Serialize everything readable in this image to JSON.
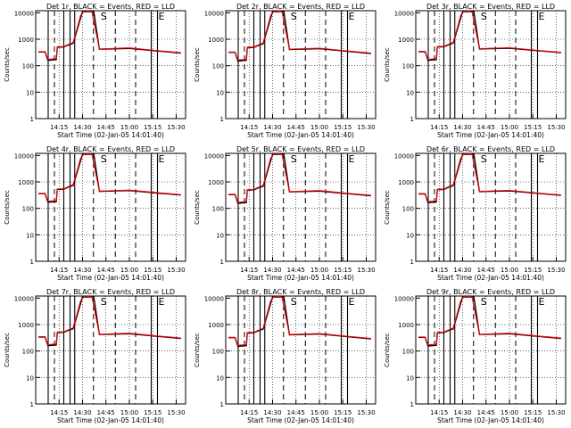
{
  "chart_data": {
    "type": "line",
    "layout": "3x3 grid",
    "x_ticks": [
      "14:15",
      "14:30",
      "14:45",
      "15:00",
      "15:15",
      "15:30"
    ],
    "xlabel": "Start Time (02-Jan-05 14:01:40)",
    "ylabel": "Counts/sec",
    "yscale": "log",
    "ylim": [
      1,
      12000
    ],
    "y_ticks": [
      "1",
      "10",
      "100",
      "1000",
      "10000"
    ],
    "grid": "dotted",
    "series_colors": {
      "events": "#000000",
      "lld": "#ff0000"
    },
    "markers": {
      "solid_times": [
        "14:08",
        "14:18",
        "14:22",
        "14:25",
        "15:14",
        "15:18"
      ],
      "dashed_times": [
        "14:12",
        "14:37",
        "14:51",
        "15:04"
      ],
      "letters": [
        {
          "text": "S",
          "time": "14:41"
        },
        {
          "text": "E",
          "time": "15:18"
        }
      ]
    },
    "panels": [
      {
        "title": "Det 1r, BLACK = Events, RED = LLD",
        "events": [
          [
            14.03,
            330
          ],
          [
            14.1,
            330
          ],
          [
            14.13,
            160
          ],
          [
            14.22,
            170
          ],
          [
            14.23,
            500
          ],
          [
            14.3,
            510
          ],
          [
            14.35,
            610
          ],
          [
            14.4,
            700
          ],
          [
            14.5,
            11000
          ],
          [
            14.62,
            11000
          ],
          [
            14.68,
            420
          ],
          [
            15.0,
            450
          ],
          [
            15.3,
            360
          ],
          [
            15.55,
            300
          ]
        ],
        "lld": [
          [
            14.03,
            340
          ],
          [
            14.1,
            340
          ],
          [
            14.13,
            175
          ],
          [
            14.22,
            185
          ],
          [
            14.23,
            520
          ],
          [
            14.3,
            530
          ],
          [
            14.35,
            640
          ],
          [
            14.4,
            750
          ],
          [
            14.48,
            8000
          ],
          [
            14.52,
            12000
          ],
          [
            14.6,
            11000
          ],
          [
            14.68,
            430
          ],
          [
            15.0,
            470
          ],
          [
            15.3,
            370
          ],
          [
            15.55,
            310
          ]
        ]
      },
      {
        "title": "Det 2r, BLACK = Events, RED = LLD",
        "events": [
          [
            14.03,
            320
          ],
          [
            14.1,
            320
          ],
          [
            14.13,
            150
          ],
          [
            14.22,
            160
          ],
          [
            14.23,
            480
          ],
          [
            14.3,
            490
          ],
          [
            14.35,
            590
          ],
          [
            14.4,
            680
          ],
          [
            14.5,
            11000
          ],
          [
            14.62,
            11000
          ],
          [
            14.68,
            410
          ],
          [
            15.0,
            440
          ],
          [
            15.3,
            350
          ],
          [
            15.55,
            290
          ]
        ],
        "lld": [
          [
            14.03,
            330
          ],
          [
            14.1,
            330
          ],
          [
            14.13,
            165
          ],
          [
            14.22,
            175
          ],
          [
            14.23,
            500
          ],
          [
            14.3,
            510
          ],
          [
            14.35,
            620
          ],
          [
            14.4,
            730
          ],
          [
            14.48,
            8000
          ],
          [
            14.52,
            12000
          ],
          [
            14.6,
            11000
          ],
          [
            14.68,
            420
          ],
          [
            15.0,
            460
          ],
          [
            15.3,
            360
          ],
          [
            15.55,
            300
          ]
        ]
      },
      {
        "title": "Det 3r, BLACK = Events, RED = LLD",
        "events": [
          [
            14.03,
            340
          ],
          [
            14.1,
            340
          ],
          [
            14.13,
            160
          ],
          [
            14.22,
            170
          ],
          [
            14.23,
            510
          ],
          [
            14.3,
            520
          ],
          [
            14.35,
            620
          ],
          [
            14.4,
            720
          ],
          [
            14.5,
            11000
          ],
          [
            14.62,
            11000
          ],
          [
            14.68,
            430
          ],
          [
            15.0,
            460
          ],
          [
            15.3,
            370
          ],
          [
            15.55,
            310
          ]
        ],
        "lld": [
          [
            14.03,
            350
          ],
          [
            14.1,
            350
          ],
          [
            14.13,
            175
          ],
          [
            14.22,
            185
          ],
          [
            14.23,
            530
          ],
          [
            14.3,
            540
          ],
          [
            14.35,
            650
          ],
          [
            14.4,
            770
          ],
          [
            14.48,
            8000
          ],
          [
            14.52,
            12000
          ],
          [
            14.6,
            11000
          ],
          [
            14.68,
            440
          ],
          [
            15.0,
            480
          ],
          [
            15.3,
            380
          ],
          [
            15.55,
            320
          ]
        ]
      },
      {
        "title": "Det 4r, BLACK = Events, RED = LLD",
        "events": [
          [
            14.03,
            360
          ],
          [
            14.1,
            360
          ],
          [
            14.13,
            170
          ],
          [
            14.22,
            180
          ],
          [
            14.23,
            520
          ],
          [
            14.3,
            530
          ],
          [
            14.35,
            640
          ],
          [
            14.4,
            740
          ],
          [
            14.5,
            11000
          ],
          [
            14.62,
            11000
          ],
          [
            14.68,
            440
          ],
          [
            15.0,
            470
          ],
          [
            15.3,
            380
          ],
          [
            15.55,
            320
          ]
        ],
        "lld": [
          [
            14.03,
            370
          ],
          [
            14.1,
            370
          ],
          [
            14.13,
            185
          ],
          [
            14.22,
            195
          ],
          [
            14.23,
            540
          ],
          [
            14.3,
            550
          ],
          [
            14.35,
            670
          ],
          [
            14.4,
            790
          ],
          [
            14.48,
            8000
          ],
          [
            14.52,
            12000
          ],
          [
            14.6,
            11000
          ],
          [
            14.68,
            450
          ],
          [
            15.0,
            490
          ],
          [
            15.3,
            390
          ],
          [
            15.55,
            330
          ]
        ]
      },
      {
        "title": "Det 5r, BLACK = Events, RED = LLD",
        "events": [
          [
            14.03,
            330
          ],
          [
            14.1,
            330
          ],
          [
            14.13,
            155
          ],
          [
            14.22,
            165
          ],
          [
            14.23,
            490
          ],
          [
            14.3,
            500
          ],
          [
            14.35,
            600
          ],
          [
            14.4,
            690
          ],
          [
            14.5,
            11000
          ],
          [
            14.62,
            11000
          ],
          [
            14.68,
            420
          ],
          [
            15.0,
            450
          ],
          [
            15.3,
            360
          ],
          [
            15.55,
            300
          ]
        ],
        "lld": [
          [
            14.03,
            340
          ],
          [
            14.1,
            340
          ],
          [
            14.13,
            170
          ],
          [
            14.22,
            180
          ],
          [
            14.23,
            510
          ],
          [
            14.3,
            520
          ],
          [
            14.35,
            630
          ],
          [
            14.4,
            740
          ],
          [
            14.48,
            8000
          ],
          [
            14.52,
            12000
          ],
          [
            14.6,
            11000
          ],
          [
            14.68,
            430
          ],
          [
            15.0,
            470
          ],
          [
            15.3,
            370
          ],
          [
            15.55,
            310
          ]
        ]
      },
      {
        "title": "Det 6r, BLACK = Events, RED = LLD",
        "events": [
          [
            14.03,
            350
          ],
          [
            14.1,
            350
          ],
          [
            14.13,
            165
          ],
          [
            14.22,
            175
          ],
          [
            14.23,
            510
          ],
          [
            14.3,
            520
          ],
          [
            14.35,
            630
          ],
          [
            14.4,
            730
          ],
          [
            14.5,
            11000
          ],
          [
            14.62,
            11000
          ],
          [
            14.68,
            430
          ],
          [
            15.0,
            460
          ],
          [
            15.3,
            370
          ],
          [
            15.55,
            310
          ]
        ],
        "lld": [
          [
            14.03,
            360
          ],
          [
            14.1,
            360
          ],
          [
            14.13,
            180
          ],
          [
            14.22,
            190
          ],
          [
            14.23,
            530
          ],
          [
            14.3,
            540
          ],
          [
            14.35,
            660
          ],
          [
            14.4,
            780
          ],
          [
            14.48,
            8000
          ],
          [
            14.52,
            12000
          ],
          [
            14.6,
            11000
          ],
          [
            14.68,
            440
          ],
          [
            15.0,
            480
          ],
          [
            15.3,
            380
          ],
          [
            15.55,
            320
          ]
        ]
      },
      {
        "title": "Det 7r, BLACK = Events, RED = LLD",
        "events": [
          [
            14.03,
            340
          ],
          [
            14.1,
            340
          ],
          [
            14.13,
            160
          ],
          [
            14.22,
            170
          ],
          [
            14.23,
            500
          ],
          [
            14.3,
            510
          ],
          [
            14.35,
            610
          ],
          [
            14.4,
            700
          ],
          [
            14.5,
            11000
          ],
          [
            14.62,
            11000
          ],
          [
            14.68,
            420
          ],
          [
            15.0,
            450
          ],
          [
            15.3,
            360
          ],
          [
            15.55,
            300
          ]
        ],
        "lld": [
          [
            14.03,
            350
          ],
          [
            14.1,
            350
          ],
          [
            14.13,
            175
          ],
          [
            14.22,
            185
          ],
          [
            14.23,
            520
          ],
          [
            14.3,
            530
          ],
          [
            14.35,
            640
          ],
          [
            14.4,
            750
          ],
          [
            14.48,
            8000
          ],
          [
            14.52,
            12000
          ],
          [
            14.6,
            11000
          ],
          [
            14.68,
            430
          ],
          [
            15.0,
            470
          ],
          [
            15.3,
            370
          ],
          [
            15.55,
            310
          ]
        ]
      },
      {
        "title": "Det 8r, BLACK = Events, RED = LLD",
        "events": [
          [
            14.03,
            320
          ],
          [
            14.1,
            320
          ],
          [
            14.13,
            150
          ],
          [
            14.22,
            160
          ],
          [
            14.23,
            480
          ],
          [
            14.3,
            490
          ],
          [
            14.35,
            590
          ],
          [
            14.4,
            680
          ],
          [
            14.5,
            11000
          ],
          [
            14.62,
            11000
          ],
          [
            14.68,
            410
          ],
          [
            15.0,
            440
          ],
          [
            15.3,
            350
          ],
          [
            15.55,
            290
          ]
        ],
        "lld": [
          [
            14.03,
            330
          ],
          [
            14.1,
            330
          ],
          [
            14.13,
            165
          ],
          [
            14.22,
            175
          ],
          [
            14.23,
            500
          ],
          [
            14.3,
            510
          ],
          [
            14.35,
            620
          ],
          [
            14.4,
            730
          ],
          [
            14.48,
            8000
          ],
          [
            14.52,
            12000
          ],
          [
            14.6,
            11000
          ],
          [
            14.68,
            420
          ],
          [
            15.0,
            460
          ],
          [
            15.3,
            360
          ],
          [
            15.55,
            300
          ]
        ]
      },
      {
        "title": "Det 9r, BLACK = Events, RED = LLD",
        "events": [
          [
            14.03,
            330
          ],
          [
            14.1,
            330
          ],
          [
            14.13,
            155
          ],
          [
            14.22,
            165
          ],
          [
            14.23,
            490
          ],
          [
            14.3,
            500
          ],
          [
            14.35,
            600
          ],
          [
            14.4,
            690
          ],
          [
            14.5,
            11000
          ],
          [
            14.62,
            11000
          ],
          [
            14.68,
            420
          ],
          [
            15.0,
            450
          ],
          [
            15.3,
            360
          ],
          [
            15.55,
            300
          ]
        ],
        "lld": [
          [
            14.03,
            340
          ],
          [
            14.1,
            340
          ],
          [
            14.13,
            170
          ],
          [
            14.22,
            180
          ],
          [
            14.23,
            510
          ],
          [
            14.3,
            520
          ],
          [
            14.35,
            630
          ],
          [
            14.4,
            740
          ],
          [
            14.48,
            8000
          ],
          [
            14.52,
            12000
          ],
          [
            14.6,
            11000
          ],
          [
            14.68,
            430
          ],
          [
            15.0,
            470
          ],
          [
            15.3,
            370
          ],
          [
            15.55,
            310
          ]
        ]
      }
    ]
  }
}
